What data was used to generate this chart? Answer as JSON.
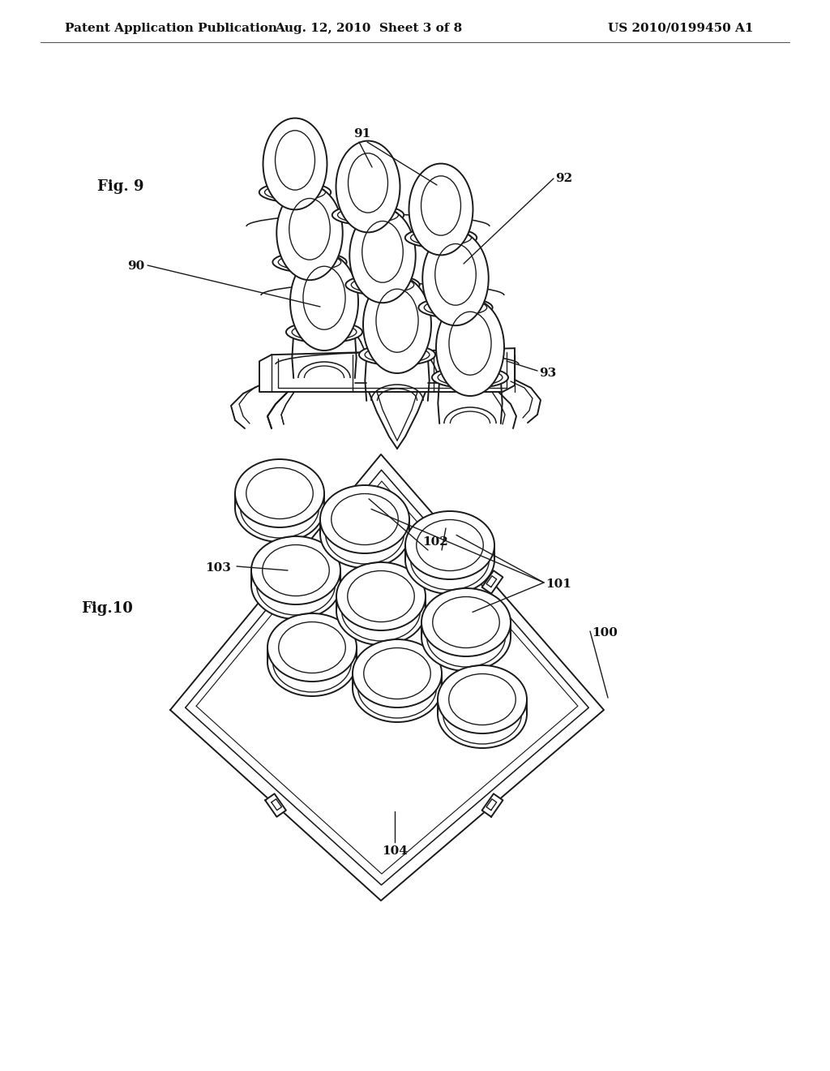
{
  "bg_color": "#ffffff",
  "header_text": "Patent Application Publication",
  "header_date": "Aug. 12, 2010  Sheet 3 of 8",
  "header_patent": "US 2010/0199450 A1",
  "line_color": "#1a1a1a",
  "line_width": 1.4,
  "fig9_label": "Fig. 9",
  "fig10_label": "Fig.10",
  "ref_fontsize": 11,
  "label_fontsize": 13
}
